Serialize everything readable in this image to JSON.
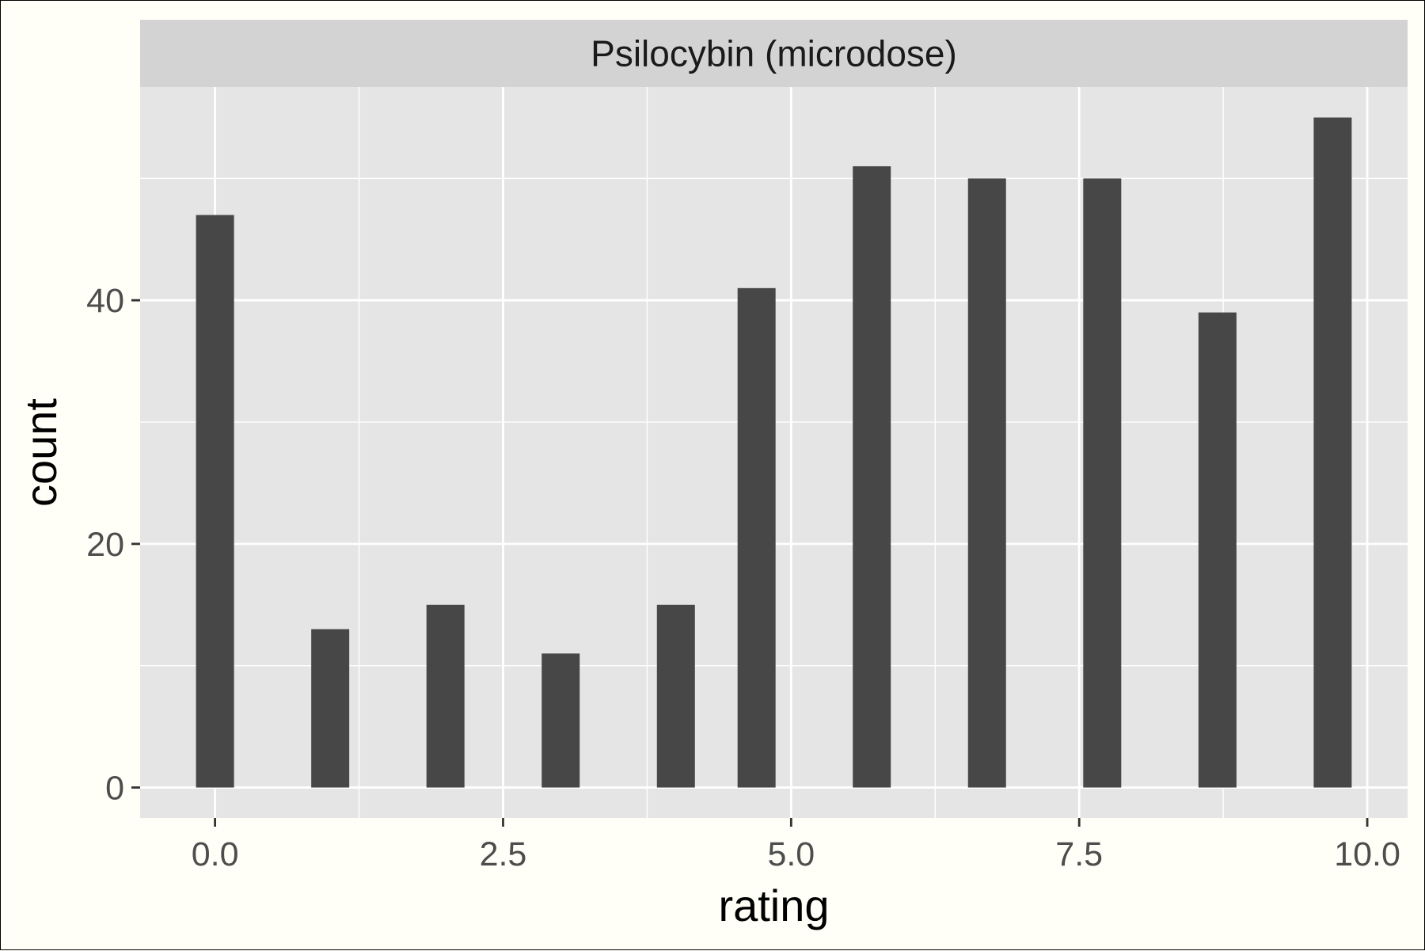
{
  "chart_data": {
    "type": "bar",
    "facet_label": "Psilocybin (microdose)",
    "xlabel": "rating",
    "ylabel": "count",
    "x": [
      0,
      1,
      2,
      3,
      4,
      4.7,
      5.7,
      6.7,
      7.7,
      8.7,
      9.7
    ],
    "values": [
      47,
      13,
      15,
      11,
      15,
      41,
      51,
      50,
      50,
      39,
      55
    ],
    "xlim": [
      -0.65,
      10.35
    ],
    "ylim": [
      -2.5,
      57.5
    ],
    "x_ticks": [
      0,
      2.5,
      5,
      7.5,
      10
    ],
    "x_tick_labels": [
      "0.0",
      "2.5",
      "5.0",
      "7.5",
      "10.0"
    ],
    "y_ticks": [
      0,
      20,
      40
    ],
    "y_tick_labels": [
      "0",
      "20",
      "40"
    ],
    "grid": true,
    "colors": {
      "bar": "#474747",
      "panel": "#e5e5e5",
      "strip": "#d3d3d3",
      "grid": "#ffffff",
      "background": "#fffff7"
    }
  }
}
